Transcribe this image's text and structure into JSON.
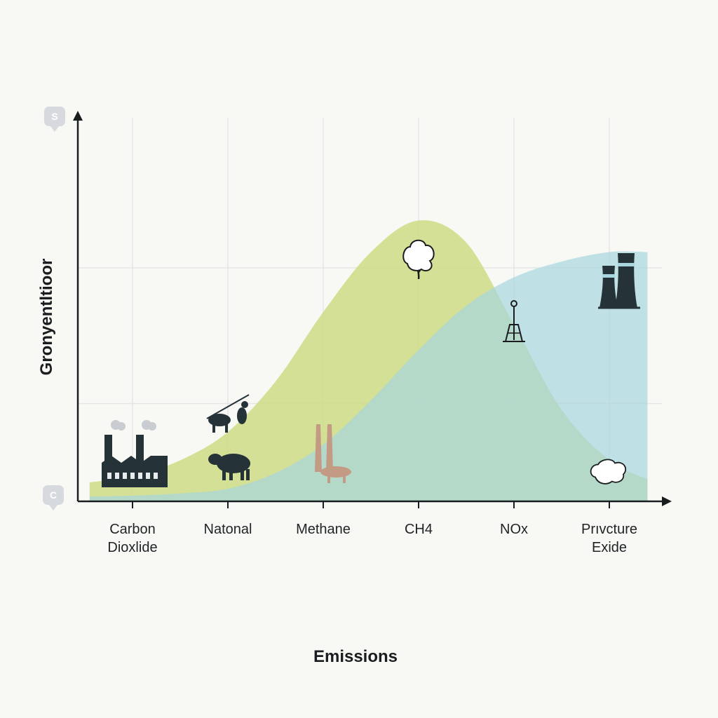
{
  "chart_data": {
    "type": "area",
    "xlabel": "Emissions",
    "ylabel": "Gronyentltioor",
    "categories": [
      [
        "Carbon",
        "Dioxlide"
      ],
      [
        "Natonal"
      ],
      [
        "Methane"
      ],
      [
        "CH4"
      ],
      [
        "NOx"
      ],
      [
        "Prıvcture",
        "Exide"
      ]
    ],
    "x": [
      -0.45,
      0,
      0.5,
      1,
      1.5,
      2,
      2.5,
      3,
      3.5,
      4,
      4.5,
      5,
      5.4
    ],
    "ylim": [
      0,
      10
    ],
    "grid": true,
    "series": [
      {
        "color": "#cddc84",
        "values": [
          0.6,
          0.8,
          1.3,
          2.2,
          3.8,
          6.0,
          7.9,
          8.9,
          8.2,
          5.6,
          2.9,
          1.3,
          0.7
        ]
      },
      {
        "color": "#a9d6de",
        "values": [
          0.15,
          0.18,
          0.25,
          0.4,
          0.9,
          1.8,
          3.2,
          4.8,
          6.2,
          7.1,
          7.6,
          7.9,
          7.9
        ]
      }
    ],
    "axis_badges": {
      "top": "S",
      "bottom": "C"
    },
    "icons": [
      {
        "name": "factory-icon",
        "x": 0,
        "y": 1.0
      },
      {
        "name": "cow-icon",
        "x": 1,
        "y": 1.2
      },
      {
        "name": "herder-with-cattle-icon",
        "x": 1,
        "y": 2.8
      },
      {
        "name": "smokestack-icon",
        "x": 2,
        "y": 1.2
      },
      {
        "name": "tree-icon",
        "x": 3,
        "y": 7.4
      },
      {
        "name": "oil-derrick-icon",
        "x": 4,
        "y": 5.6
      },
      {
        "name": "cooling-towers-icon",
        "x": 5,
        "y": 6.8
      },
      {
        "name": "cloud-icon",
        "x": 5,
        "y": 0.9
      }
    ]
  }
}
